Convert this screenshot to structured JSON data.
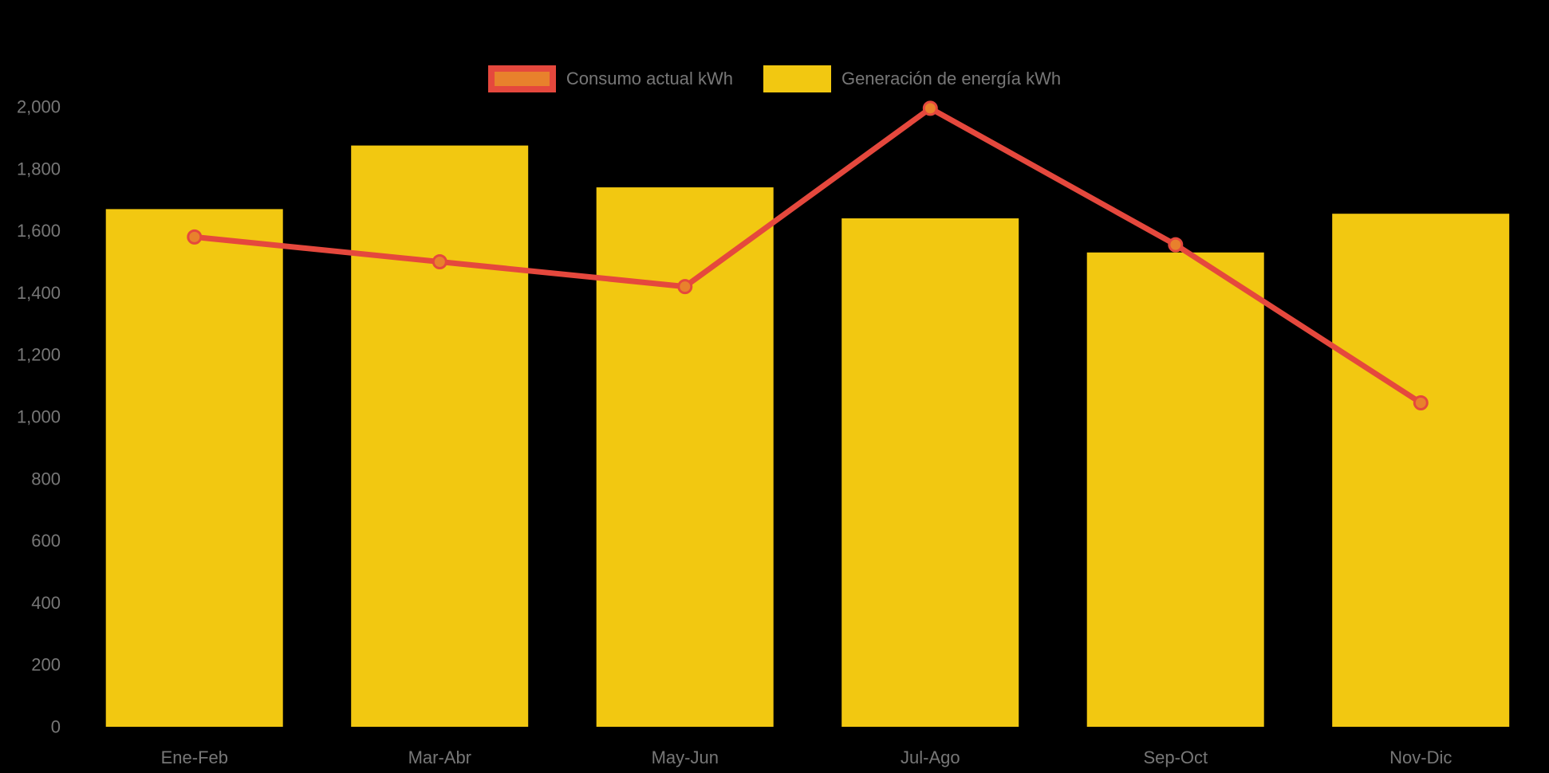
{
  "colors": {
    "background": "#000000",
    "bar_yellow": "#F2C811",
    "line_red": "#E5483D",
    "marker_orange": "#E8812C",
    "axis_text": "#777777"
  },
  "legend": {
    "items": [
      {
        "label": "Consumo actual kWh",
        "swatch_fill": "#E8812C",
        "swatch_border": "#E5483D"
      },
      {
        "label": "Generación de energía kWh",
        "swatch_fill": "#F2C811",
        "swatch_border": "#F2C811"
      }
    ]
  },
  "chart_data": {
    "type": "bar",
    "subtype": "combo-bar-line",
    "title": "",
    "xlabel": "",
    "ylabel": "",
    "categories": [
      "Ene-Feb",
      "Mar-Abr",
      "May-Jun",
      "Jul-Ago",
      "Sep-Oct",
      "Nov-Dic"
    ],
    "series": [
      {
        "name": "Generación de energía kWh",
        "type": "bar",
        "color": "#F2C811",
        "values": [
          1670,
          1875,
          1740,
          1640,
          1530,
          1655
        ]
      },
      {
        "name": "Consumo actual kWh",
        "type": "line",
        "color": "#E5483D",
        "marker_fill": "#E8812C",
        "values": [
          1580,
          1500,
          1420,
          1995,
          1555,
          1045
        ]
      }
    ],
    "y_axis": {
      "min": 0,
      "max": 2000,
      "step": 200,
      "tick_labels": [
        "0",
        "200",
        "400",
        "600",
        "800",
        "1,000",
        "1,200",
        "1,400",
        "1,600",
        "1,800",
        "2,000"
      ]
    },
    "grid": false,
    "axis_lines": false,
    "legend_position": "top-center"
  }
}
